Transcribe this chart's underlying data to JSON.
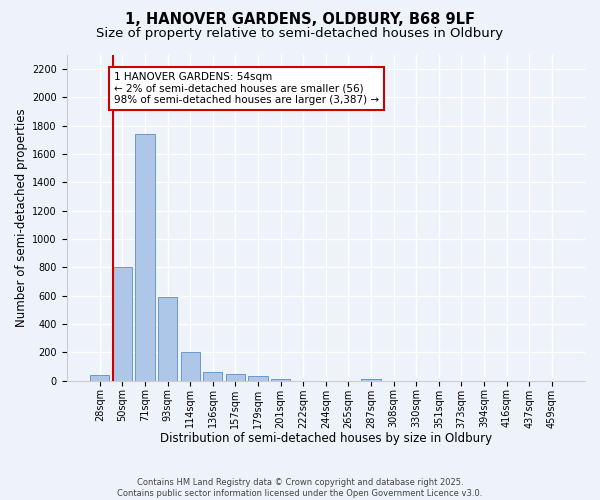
{
  "title_line1": "1, HANOVER GARDENS, OLDBURY, B68 9LF",
  "title_line2": "Size of property relative to semi-detached houses in Oldbury",
  "xlabel": "Distribution of semi-detached houses by size in Oldbury",
  "ylabel": "Number of semi-detached properties",
  "categories": [
    "28sqm",
    "50sqm",
    "71sqm",
    "93sqm",
    "114sqm",
    "136sqm",
    "157sqm",
    "179sqm",
    "201sqm",
    "222sqm",
    "244sqm",
    "265sqm",
    "287sqm",
    "308sqm",
    "330sqm",
    "351sqm",
    "373sqm",
    "394sqm",
    "416sqm",
    "437sqm",
    "459sqm"
  ],
  "values": [
    40,
    800,
    1740,
    590,
    205,
    60,
    45,
    30,
    15,
    0,
    0,
    0,
    15,
    0,
    0,
    0,
    0,
    0,
    0,
    0,
    0
  ],
  "bar_color": "#aec6e8",
  "bar_edge_color": "#5a8fc2",
  "vline_color": "#cc0000",
  "annotation_text": "1 HANOVER GARDENS: 54sqm\n← 2% of semi-detached houses are smaller (56)\n98% of semi-detached houses are larger (3,387) →",
  "ylim": [
    0,
    2300
  ],
  "yticks": [
    0,
    200,
    400,
    600,
    800,
    1000,
    1200,
    1400,
    1600,
    1800,
    2000,
    2200
  ],
  "background_color": "#eef2fb",
  "grid_color": "#ffffff",
  "footer": "Contains HM Land Registry data © Crown copyright and database right 2025.\nContains public sector information licensed under the Open Government Licence v3.0.",
  "title_fontsize": 10.5,
  "subtitle_fontsize": 9.5,
  "axis_label_fontsize": 8.5,
  "tick_fontsize": 7,
  "annotation_fontsize": 7.5
}
